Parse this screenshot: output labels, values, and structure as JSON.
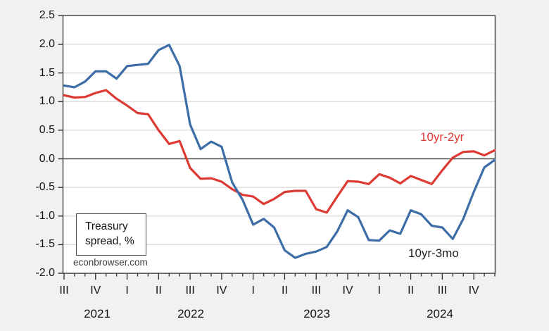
{
  "labels": {
    "note_line1": "Treasury",
    "note_line2": "spread, %",
    "watermark": "econbrowser.com",
    "red_series": "10yr-2yr",
    "blue_series": "10yr-3mo"
  },
  "colors": {
    "red": "#dd3a33",
    "blue": "#3c6da6",
    "grid": "#d8d8d8",
    "zero_line": "#4a4a4a",
    "frame": "#3f3f3f",
    "tick": "#2e2e2e",
    "background": "#f1f1ef",
    "plot_background": "#ffffff"
  },
  "chart_data": {
    "type": "line",
    "ylabel": "Treasury spread, %",
    "ylim": [
      -2.0,
      2.5
    ],
    "grid": "horizontal",
    "y_tick_labels": [
      "2.5",
      "2.0",
      "1.5",
      "1.0",
      "0.5",
      "0.0",
      "-0.5",
      "-1.0",
      "-1.5",
      "-2.0"
    ],
    "x_quarter_labels": [
      "III",
      "IV",
      "I",
      "II",
      "III",
      "IV",
      "I",
      "II",
      "III",
      "IV",
      "I",
      "II",
      "III",
      "IV"
    ],
    "x_year_labels": [
      "2021",
      "2022",
      "2023",
      "2024"
    ],
    "x": [
      "2021-07",
      "2021-08",
      "2021-09",
      "2021-10",
      "2021-11",
      "2021-12",
      "2022-01",
      "2022-02",
      "2022-03",
      "2022-04",
      "2022-05",
      "2022-06",
      "2022-07",
      "2022-08",
      "2022-09",
      "2022-10",
      "2022-11",
      "2022-12",
      "2023-01",
      "2023-02",
      "2023-03",
      "2023-04",
      "2023-05",
      "2023-06",
      "2023-07",
      "2023-08",
      "2023-09",
      "2023-10",
      "2023-11",
      "2023-12",
      "2024-01",
      "2024-02",
      "2024-03",
      "2024-04",
      "2024-05",
      "2024-06",
      "2024-07",
      "2024-08",
      "2024-09",
      "2024-10",
      "2024-11",
      "2024-12"
    ],
    "series": [
      {
        "name": "10yr-2yr",
        "color": "#dd3a33",
        "values": [
          1.11,
          1.07,
          1.08,
          1.15,
          1.2,
          1.05,
          0.93,
          0.8,
          0.78,
          0.5,
          0.26,
          0.31,
          -0.16,
          -0.35,
          -0.34,
          -0.4,
          -0.53,
          -0.63,
          -0.66,
          -0.79,
          -0.7,
          -0.58,
          -0.56,
          -0.56,
          -0.88,
          -0.94,
          -0.66,
          -0.39,
          -0.4,
          -0.44,
          -0.27,
          -0.33,
          -0.43,
          -0.3,
          -0.37,
          -0.44,
          -0.2,
          0.02,
          0.12,
          0.13,
          0.06,
          0.15
        ]
      },
      {
        "name": "10yr-3mo",
        "color": "#3c6da6",
        "values": [
          1.28,
          1.25,
          1.35,
          1.53,
          1.53,
          1.4,
          1.62,
          1.64,
          1.66,
          1.9,
          1.99,
          1.62,
          0.6,
          0.17,
          0.3,
          0.21,
          -0.41,
          -0.72,
          -1.15,
          -1.05,
          -1.2,
          -1.6,
          -1.73,
          -1.66,
          -1.62,
          -1.54,
          -1.27,
          -0.9,
          -1.02,
          -1.42,
          -1.43,
          -1.25,
          -1.31,
          -0.9,
          -0.97,
          -1.17,
          -1.2,
          -1.4,
          -1.05,
          -0.58,
          -0.15,
          -0.02
        ]
      }
    ],
    "annotations": [
      {
        "text": "10yr-2yr",
        "color": "#dd3a33"
      },
      {
        "text": "10yr-3mo",
        "color": "#1f1f1f"
      }
    ]
  }
}
